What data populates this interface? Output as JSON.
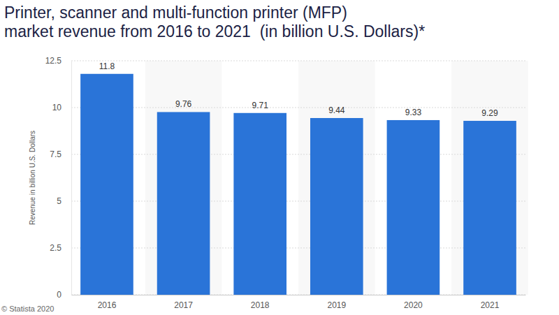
{
  "chart_data": {
    "type": "bar",
    "title": [
      "Printer, scanner and multi-function printer (MFP)",
      "market revenue from 2016 to 2021  (in billion U.S. Dollars)*"
    ],
    "y_label": "Revenue in billion U.S. Dollars",
    "credit": "© Statista 2020",
    "categories": [
      "2016",
      "2017",
      "2018",
      "2019",
      "2020",
      "2021"
    ],
    "values": [
      11.8,
      9.76,
      9.71,
      9.44,
      9.33,
      9.29
    ],
    "color": "#2a74d8",
    "ylim": [
      0,
      12.5
    ],
    "yticks": [
      0,
      2.5,
      5,
      7.5,
      10,
      12.5
    ],
    "grid": true,
    "data_labels": true
  }
}
